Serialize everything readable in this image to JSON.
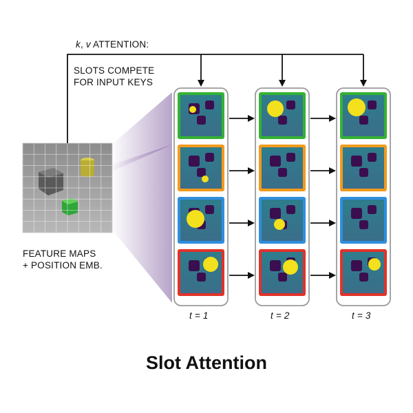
{
  "attention_label": {
    "k": "k",
    "sep": ", ",
    "v": "v",
    "rest": " ATTENTION:"
  },
  "compete_line1": "SLOTS COMPETE",
  "compete_line2": "FOR INPUT KEYS",
  "feature_line1": "FEATURE MAPS",
  "feature_line2": "+ POSITION EMB.",
  "time_labels": [
    "t = 1",
    "t = 2",
    "t = 3"
  ],
  "slot_colors": [
    "#34b233",
    "#f29a1d",
    "#2f8ede",
    "#e0322a"
  ],
  "title": "Slot Attention"
}
